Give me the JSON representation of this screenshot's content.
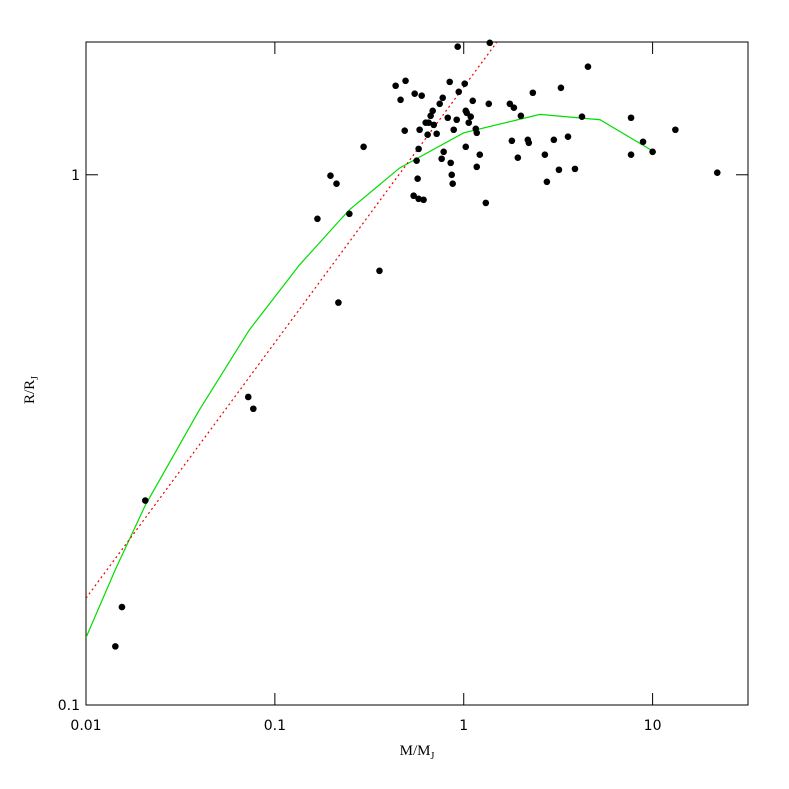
{
  "chart_data": {
    "type": "scatter",
    "xscale": "log",
    "yscale": "log",
    "xlabel": {
      "text": "M/M",
      "subscript": "J"
    },
    "ylabel": {
      "text": "R/R",
      "subscript": "J"
    },
    "xlim": [
      0.01,
      32
    ],
    "ylim": [
      0.1,
      1.78
    ],
    "xticks": [
      0.01,
      0.1,
      1,
      10
    ],
    "yticks": [
      0.1,
      1
    ],
    "points": {
      "color": "#000000",
      "x": [
        0.0143,
        0.0155,
        0.0206,
        0.0723,
        0.0769,
        0.168,
        0.197,
        0.212,
        0.217,
        0.248,
        0.295,
        0.358,
        0.436,
        0.463,
        0.492,
        0.487,
        0.55,
        0.543,
        0.563,
        0.57,
        0.577,
        0.577,
        0.584,
        0.599,
        0.613,
        0.629,
        0.644,
        0.652,
        0.668,
        0.685,
        0.694,
        0.719,
        0.746,
        0.764,
        0.774,
        0.783,
        0.823,
        0.843,
        0.853,
        0.864,
        0.874,
        0.885,
        0.918,
        0.929,
        0.941,
        1.012,
        1.025,
        1.025,
        1.037,
        1.063,
        1.089,
        1.116,
        1.158,
        1.172,
        1.172,
        1.216,
        1.309,
        1.357,
        1.374,
        1.754,
        1.798,
        1.843,
        1.934,
        2.007,
        2.184,
        2.211,
        2.322,
        2.689,
        2.756,
        3.0,
        3.192,
        3.271,
        3.565,
        3.881,
        4.227,
        4.547,
        7.69,
        7.69,
        8.9,
        10.0,
        13.2,
        22.0
      ],
      "y": [
        0.129,
        0.153,
        0.243,
        0.381,
        0.362,
        0.826,
        0.996,
        0.962,
        0.574,
        0.844,
        1.129,
        0.659,
        1.472,
        1.385,
        1.504,
        1.211,
        1.422,
        0.913,
        1.063,
        0.983,
        0.901,
        1.119,
        1.216,
        1.41,
        0.897,
        1.254,
        1.19,
        1.254,
        1.292,
        1.32,
        1.242,
        1.195,
        1.361,
        1.072,
        1.397,
        1.105,
        1.281,
        1.497,
        1.053,
        1.0,
        0.962,
        1.216,
        1.27,
        1.744,
        1.434,
        1.485,
        1.32,
        1.129,
        1.309,
        1.254,
        1.287,
        1.379,
        1.221,
        1.2,
        1.035,
        1.091,
        0.885,
        1.361,
        1.774,
        1.361,
        1.159,
        1.338,
        1.077,
        1.292,
        1.164,
        1.149,
        1.428,
        1.091,
        0.97,
        1.164,
        1.022,
        1.459,
        1.18,
        1.026,
        1.287,
        1.599,
        1.281,
        1.091,
        1.154,
        1.105,
        1.216,
        1.009
      ]
    },
    "curves": [
      {
        "color": "#00dd00",
        "style": "solid",
        "x": [
          0.01,
          0.0143,
          0.0206,
          0.0398,
          0.0733,
          0.135,
          0.248,
          0.458,
          1.0,
          2.53,
          5.27,
          10.4
        ],
        "y": [
          0.134,
          0.18,
          0.238,
          0.36,
          0.51,
          0.676,
          0.859,
          1.03,
          1.2,
          1.3,
          1.27,
          1.1
        ]
      },
      {
        "color": "#ee0000",
        "style": "dotted",
        "x": [
          0.01,
          1.5
        ],
        "y": [
          0.159,
          1.78
        ]
      }
    ]
  }
}
